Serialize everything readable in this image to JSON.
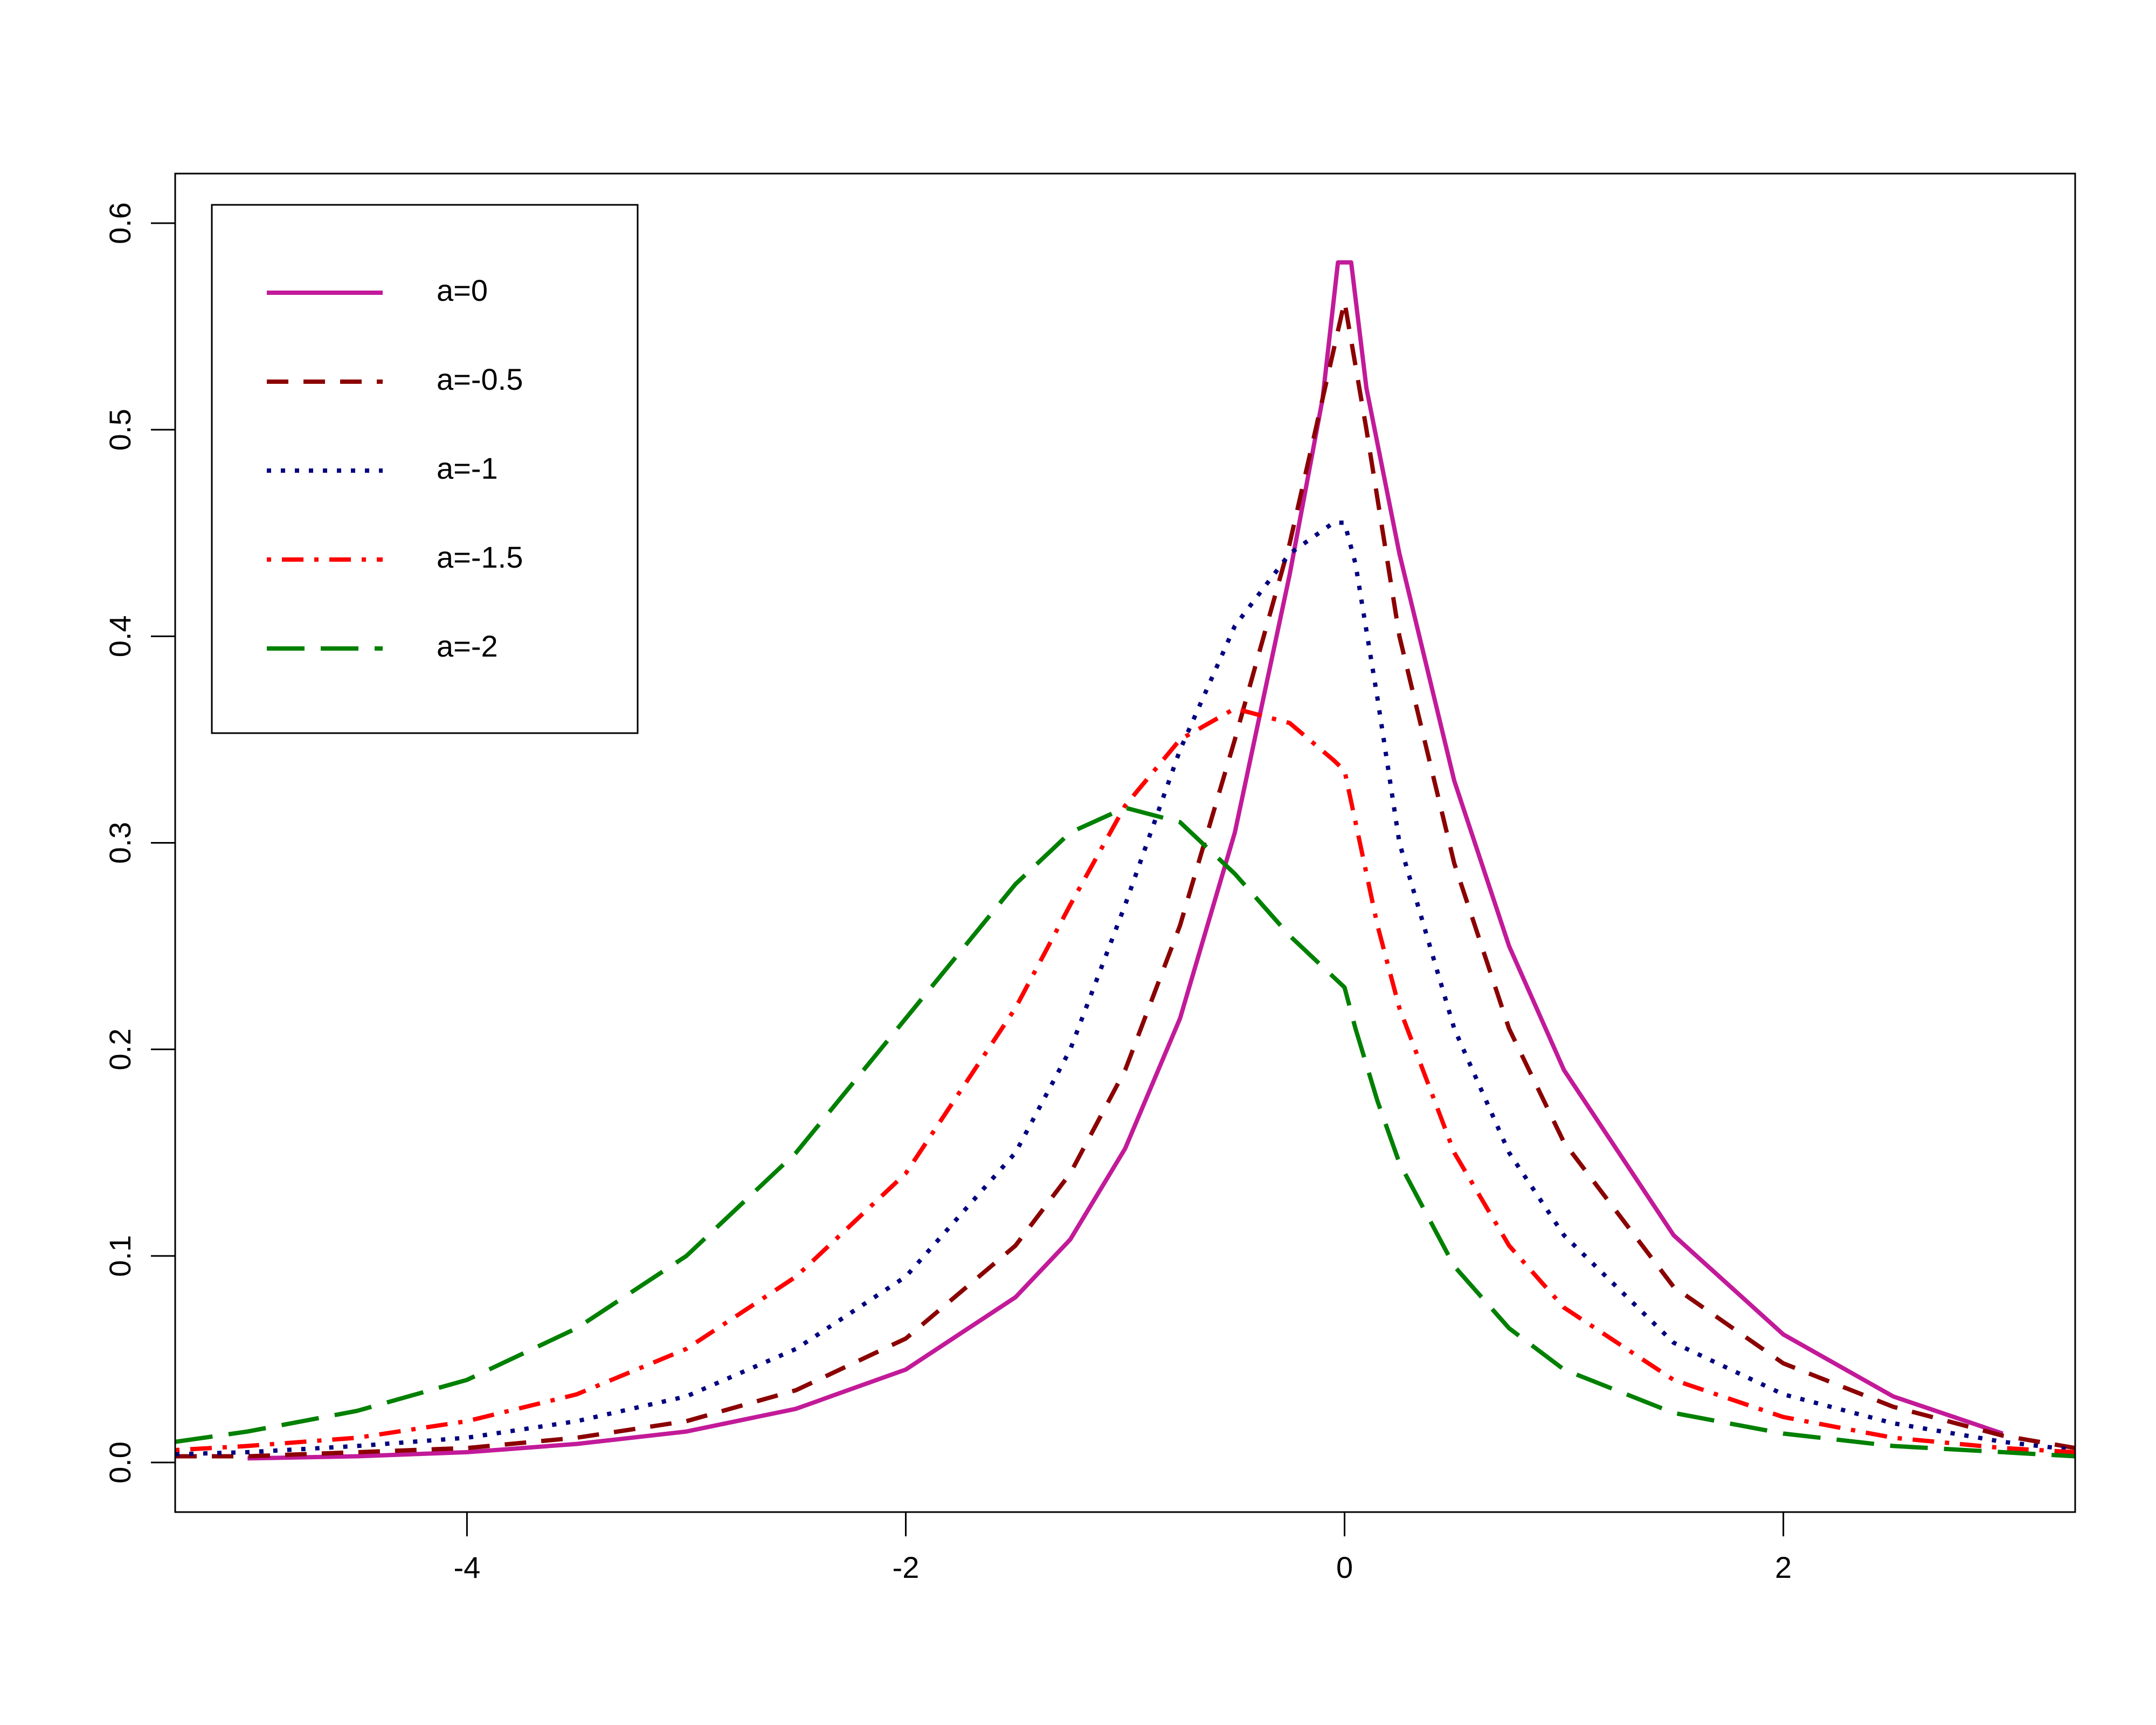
{
  "chart_data": {
    "type": "line",
    "title": "",
    "xlabel": "",
    "ylabel": "",
    "xlim": [
      -5.33,
      3.33
    ],
    "ylim": [
      -0.024,
      0.624
    ],
    "grid": false,
    "legend_position": "top-left",
    "x_ticks": [
      {
        "value": -4,
        "label": "-4"
      },
      {
        "value": -2,
        "label": "-2"
      },
      {
        "value": 0,
        "label": "0"
      },
      {
        "value": 2,
        "label": "2"
      }
    ],
    "y_ticks": [
      {
        "value": 0.0,
        "label": "0.0"
      },
      {
        "value": 0.1,
        "label": "0.1"
      },
      {
        "value": 0.2,
        "label": "0.2"
      },
      {
        "value": 0.3,
        "label": "0.3"
      },
      {
        "value": 0.4,
        "label": "0.4"
      },
      {
        "value": 0.5,
        "label": "0.5"
      },
      {
        "value": 0.6,
        "label": "0.6"
      }
    ],
    "series": [
      {
        "name": "a=0",
        "color": "#C21A99",
        "dash": "solid",
        "x": [
          -5,
          -4.5,
          -4,
          -3.5,
          -3,
          -2.5,
          -2,
          -1.5,
          -1.25,
          -1,
          -0.75,
          -0.5,
          -0.25,
          -0.1,
          -0.03,
          0.03,
          0.1,
          0.25,
          0.5,
          0.75,
          1,
          1.5,
          2,
          2.5,
          3
        ],
        "y": [
          0.002,
          0.003,
          0.005,
          0.009,
          0.015,
          0.026,
          0.045,
          0.08,
          0.108,
          0.152,
          0.215,
          0.305,
          0.43,
          0.515,
          0.581,
          0.581,
          0.52,
          0.44,
          0.33,
          0.25,
          0.19,
          0.11,
          0.062,
          0.032,
          0.014
        ]
      },
      {
        "name": "a=-0.5",
        "color": "#8B0000",
        "dash": "dashed",
        "x": [
          -5.33,
          -5,
          -4.5,
          -4,
          -3.5,
          -3,
          -2.5,
          -2,
          -1.5,
          -1.25,
          -1,
          -0.75,
          -0.5,
          -0.25,
          -0.1,
          0,
          0.1,
          0.25,
          0.5,
          0.75,
          1,
          1.5,
          2,
          2.5,
          3,
          3.33
        ],
        "y": [
          0.003,
          0.003,
          0.005,
          0.007,
          0.012,
          0.02,
          0.035,
          0.06,
          0.105,
          0.14,
          0.19,
          0.26,
          0.35,
          0.445,
          0.515,
          0.562,
          0.5,
          0.4,
          0.29,
          0.21,
          0.155,
          0.085,
          0.048,
          0.027,
          0.013,
          0.007
        ]
      },
      {
        "name": "a=-1",
        "color": "#000080",
        "dash": "dotted",
        "x": [
          -5.33,
          -5,
          -4.5,
          -4,
          -3.5,
          -3,
          -2.5,
          -2,
          -1.5,
          -1.25,
          -1,
          -0.75,
          -0.5,
          -0.25,
          -0.05,
          0,
          0.05,
          0.15,
          0.25,
          0.5,
          0.75,
          1,
          1.5,
          2,
          2.5,
          3,
          3.33
        ],
        "y": [
          0.004,
          0.005,
          0.008,
          0.012,
          0.02,
          0.032,
          0.055,
          0.09,
          0.15,
          0.2,
          0.27,
          0.345,
          0.405,
          0.44,
          0.455,
          0.455,
          0.435,
          0.37,
          0.3,
          0.21,
          0.15,
          0.11,
          0.058,
          0.033,
          0.019,
          0.01,
          0.006
        ]
      },
      {
        "name": "a=-1.5",
        "color": "#FF0000",
        "dash": "dashdot",
        "x": [
          -5.33,
          -5,
          -4.5,
          -4,
          -3.5,
          -3,
          -2.5,
          -2,
          -1.5,
          -1.25,
          -1,
          -0.75,
          -0.5,
          -0.25,
          -0.05,
          0,
          0.05,
          0.15,
          0.25,
          0.5,
          0.75,
          1,
          1.5,
          2,
          2.5,
          3,
          3.33
        ],
        "y": [
          0.006,
          0.008,
          0.012,
          0.02,
          0.033,
          0.055,
          0.09,
          0.14,
          0.22,
          0.27,
          0.318,
          0.35,
          0.365,
          0.358,
          0.34,
          0.335,
          0.31,
          0.26,
          0.22,
          0.15,
          0.105,
          0.075,
          0.04,
          0.022,
          0.012,
          0.007,
          0.005
        ]
      },
      {
        "name": "a=-2",
        "color": "#008000",
        "dash": "longdash",
        "x": [
          -5.33,
          -5,
          -4.5,
          -4,
          -3.5,
          -3,
          -2.5,
          -2,
          -1.5,
          -1.25,
          -1,
          -0.75,
          -0.5,
          -0.25,
          -0.05,
          0,
          0.05,
          0.15,
          0.25,
          0.5,
          0.75,
          1,
          1.5,
          2,
          2.5,
          3,
          3.33
        ],
        "y": [
          0.01,
          0.015,
          0.025,
          0.04,
          0.065,
          0.1,
          0.15,
          0.215,
          0.28,
          0.305,
          0.317,
          0.31,
          0.285,
          0.255,
          0.235,
          0.23,
          0.21,
          0.175,
          0.145,
          0.095,
          0.065,
          0.045,
          0.024,
          0.014,
          0.008,
          0.005,
          0.003
        ]
      }
    ]
  }
}
